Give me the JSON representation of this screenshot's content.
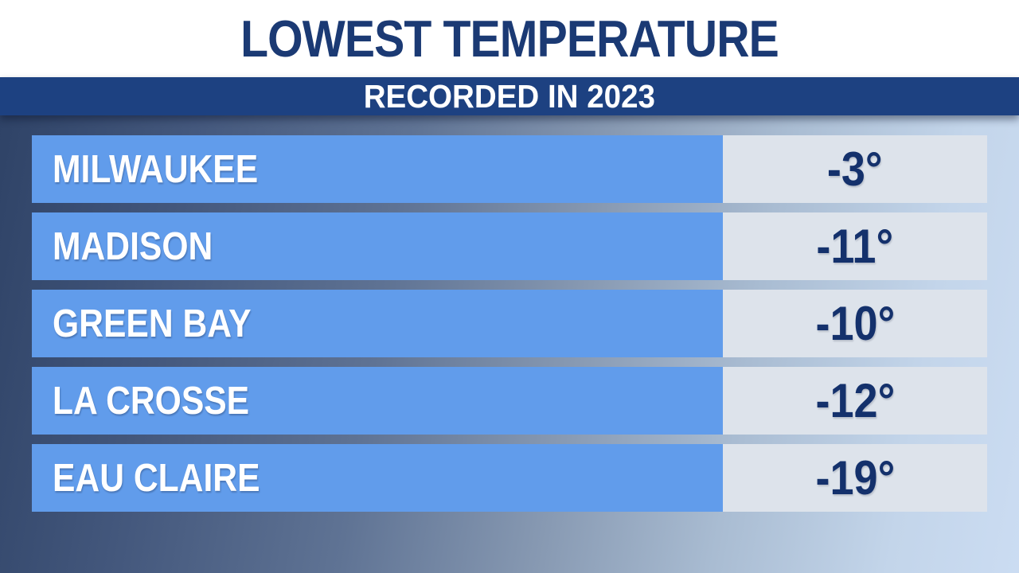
{
  "header": {
    "title": "LOWEST TEMPERATURE",
    "subtitle": "RECORDED IN 2023"
  },
  "table": {
    "rows": [
      {
        "city": "MILWAUKEE",
        "temp": "-3°"
      },
      {
        "city": "MADISON",
        "temp": "-11°"
      },
      {
        "city": "GREEN BAY",
        "temp": "-10°"
      },
      {
        "city": "LA CROSSE",
        "temp": "-12°"
      },
      {
        "city": "EAU CLAIRE",
        "temp": "-19°"
      }
    ]
  },
  "chart_data": {
    "type": "table",
    "title": "LOWEST TEMPERATURE",
    "subtitle": "RECORDED IN 2023",
    "categories": [
      "MILWAUKEE",
      "MADISON",
      "GREEN BAY",
      "LA CROSSE",
      "EAU CLAIRE"
    ],
    "values": [
      -3,
      -11,
      -10,
      -12,
      -19
    ],
    "value_labels": [
      "-3°",
      "-11°",
      "-10°",
      "-12°",
      "-19°"
    ],
    "unit": "°"
  },
  "colors": {
    "title_navy": "#1b3a74",
    "subtitle_bar_navy": "#1d4181",
    "row_blue": "#619ceb",
    "temp_cell_gray": "#dde3eb",
    "temp_text_navy": "#14316c",
    "backdrop_dark": "#2f4367",
    "backdrop_light": "#cbdcf2"
  }
}
